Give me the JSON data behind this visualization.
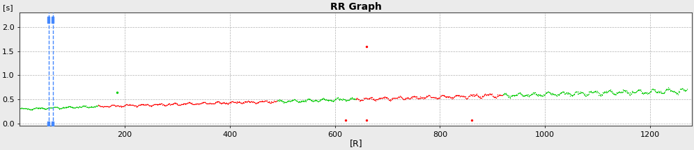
{
  "title": "RR Graph",
  "xlabel": "[R]",
  "ylabel": "[s]",
  "xlim": [
    0,
    1280
  ],
  "ylim": [
    -0.05,
    2.3
  ],
  "yticks": [
    0,
    0.5,
    1.0,
    1.5,
    2.0
  ],
  "xticks": [
    200,
    400,
    600,
    800,
    1000,
    1200
  ],
  "bg_color": "#ebebeb",
  "plot_bg_color": "#ffffff",
  "grid_color": "#b0b0b0",
  "green_color": "#00cc00",
  "red_color": "#ff0000",
  "blue_color": "#4488ff",
  "blue_line_x1": 55,
  "blue_line_x2": 63,
  "n_main": 1270,
  "seed": 42,
  "color_segments": [
    [
      0,
      150,
      "green"
    ],
    [
      150,
      490,
      "red"
    ],
    [
      490,
      640,
      "green"
    ],
    [
      640,
      840,
      "red"
    ],
    [
      840,
      860,
      "red"
    ],
    [
      860,
      920,
      "red"
    ],
    [
      920,
      1270,
      "green"
    ]
  ],
  "outliers_red": [
    [
      620,
      0.07
    ],
    [
      660,
      0.07
    ],
    [
      860,
      0.07
    ],
    [
      660,
      1.6
    ]
  ],
  "outliers_green": [
    [
      185,
      0.65
    ]
  ],
  "spread_start": 600,
  "spread_multiplier": 3.5
}
